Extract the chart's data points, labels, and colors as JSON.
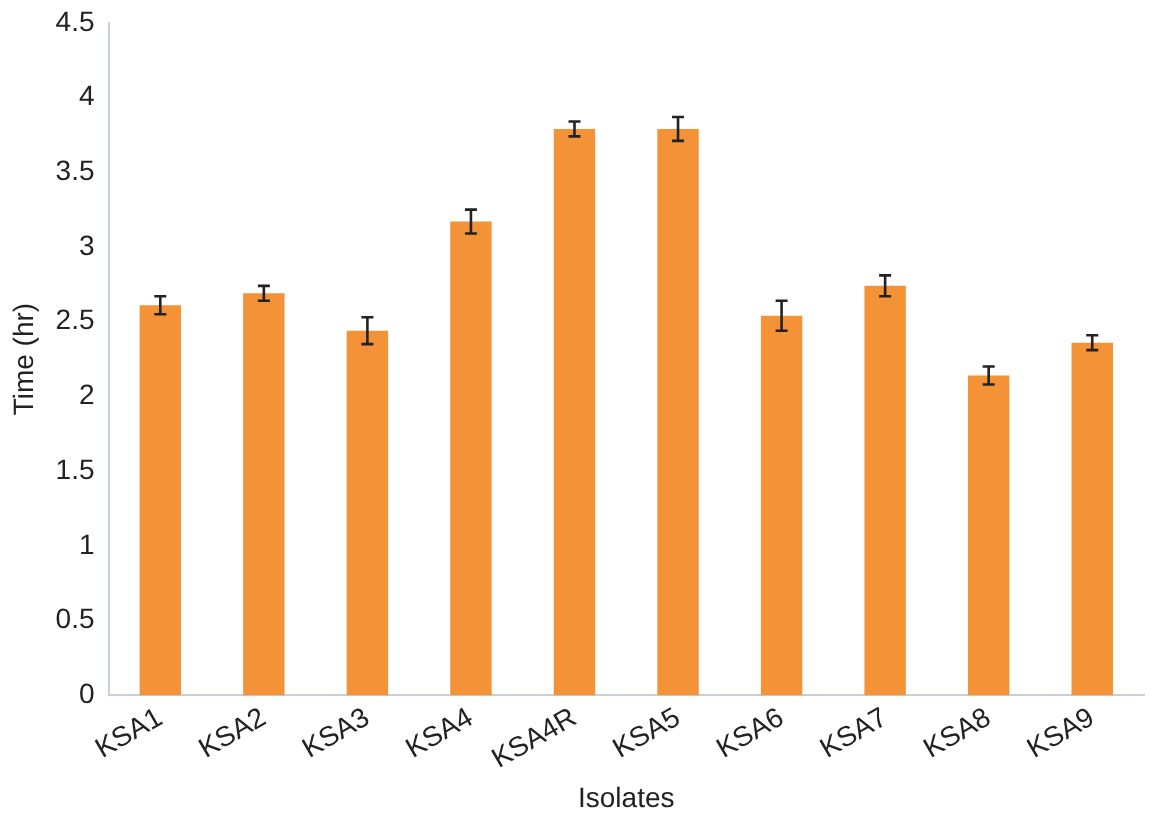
{
  "chart_data": {
    "type": "bar",
    "xlabel": "Isolates",
    "ylabel": "Time (hr)",
    "categories": [
      "KSA1",
      "KSA2",
      "KSA3",
      "KSA4",
      "KSA4R",
      "KSA5",
      "KSA6",
      "KSA7",
      "KSA8",
      "KSA9"
    ],
    "values": [
      2.61,
      2.69,
      2.44,
      3.17,
      3.79,
      3.79,
      2.54,
      2.74,
      2.14,
      2.36
    ],
    "errors": [
      0.06,
      0.05,
      0.09,
      0.08,
      0.05,
      0.08,
      0.1,
      0.07,
      0.06,
      0.05
    ],
    "color": "#f39237",
    "ylim": [
      0,
      4.5
    ],
    "yticks": [
      0,
      0.5,
      1,
      1.5,
      2,
      2.5,
      3,
      3.5,
      4,
      4.5
    ],
    "grid": false,
    "legend": false
  }
}
